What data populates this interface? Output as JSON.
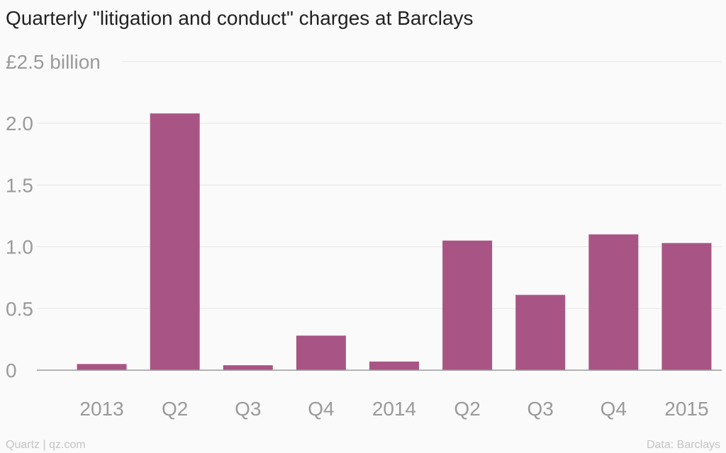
{
  "title": "Quarterly \"litigation and conduct\" charges at Barclays",
  "footer": {
    "source_left": "Quartz | qz.com",
    "source_right": "Data: Barclays"
  },
  "colors": {
    "bar": "#a85585",
    "grid": "#e6e6e6",
    "axis": "#9a9a9a",
    "tick_text": "#9a9a9a",
    "background": "#fafafa"
  },
  "chart_data": {
    "type": "bar",
    "title": "Quarterly \"litigation and conduct\" charges at Barclays",
    "categories": [
      "2013",
      "Q2",
      "Q3",
      "Q4",
      "2014",
      "Q2",
      "Q3",
      "Q4",
      "2015"
    ],
    "values": [
      0.05,
      2.08,
      0.04,
      0.28,
      0.07,
      1.05,
      0.61,
      1.1,
      1.03
    ],
    "ylim": [
      0,
      2.5
    ],
    "yticks": [
      0,
      0.5,
      1.0,
      1.5,
      2.0,
      2.5
    ],
    "ytick_labels": [
      "0",
      "0.5",
      "1.0",
      "1.5",
      "2.0",
      "£2.5 billion"
    ],
    "xlabel": "",
    "ylabel": "",
    "grid": true,
    "legend": "none"
  }
}
